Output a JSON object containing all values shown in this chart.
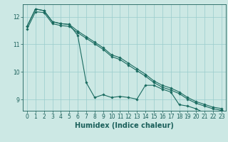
{
  "xlabel": "Humidex (Indice chaleur)",
  "background_color": "#cce8e4",
  "grid_color": "#99cccc",
  "line_color": "#1a6b60",
  "xlim": [
    -0.5,
    23.5
  ],
  "ylim": [
    8.6,
    12.45
  ],
  "yticks": [
    9,
    10,
    11,
    12
  ],
  "xticks": [
    0,
    1,
    2,
    3,
    4,
    5,
    6,
    7,
    8,
    9,
    10,
    11,
    12,
    13,
    14,
    15,
    16,
    17,
    18,
    19,
    20,
    21,
    22,
    23
  ],
  "series1_y": [
    11.65,
    12.28,
    12.22,
    11.82,
    11.75,
    11.72,
    11.48,
    11.28,
    11.08,
    10.88,
    10.62,
    10.52,
    10.32,
    10.12,
    9.92,
    9.68,
    9.52,
    9.42,
    9.28,
    9.08,
    8.93,
    8.83,
    8.73,
    8.68
  ],
  "series2_y": [
    11.65,
    12.28,
    12.22,
    11.82,
    11.75,
    11.72,
    11.32,
    9.62,
    9.08,
    9.18,
    9.08,
    9.12,
    9.08,
    9.02,
    9.52,
    9.52,
    9.38,
    9.28,
    8.82,
    8.77,
    8.67,
    8.52,
    8.52,
    8.62
  ],
  "series3_y": [
    11.55,
    12.18,
    12.15,
    11.75,
    11.68,
    11.65,
    11.42,
    11.22,
    11.02,
    10.82,
    10.56,
    10.45,
    10.25,
    10.05,
    9.85,
    9.62,
    9.45,
    9.35,
    9.22,
    9.02,
    8.87,
    8.77,
    8.67,
    8.62
  ],
  "marker": "D",
  "marker_size": 1.8,
  "line_width": 0.8,
  "font_color": "#1a5f5a",
  "tick_fontsize": 5.5,
  "label_fontsize": 7.0
}
